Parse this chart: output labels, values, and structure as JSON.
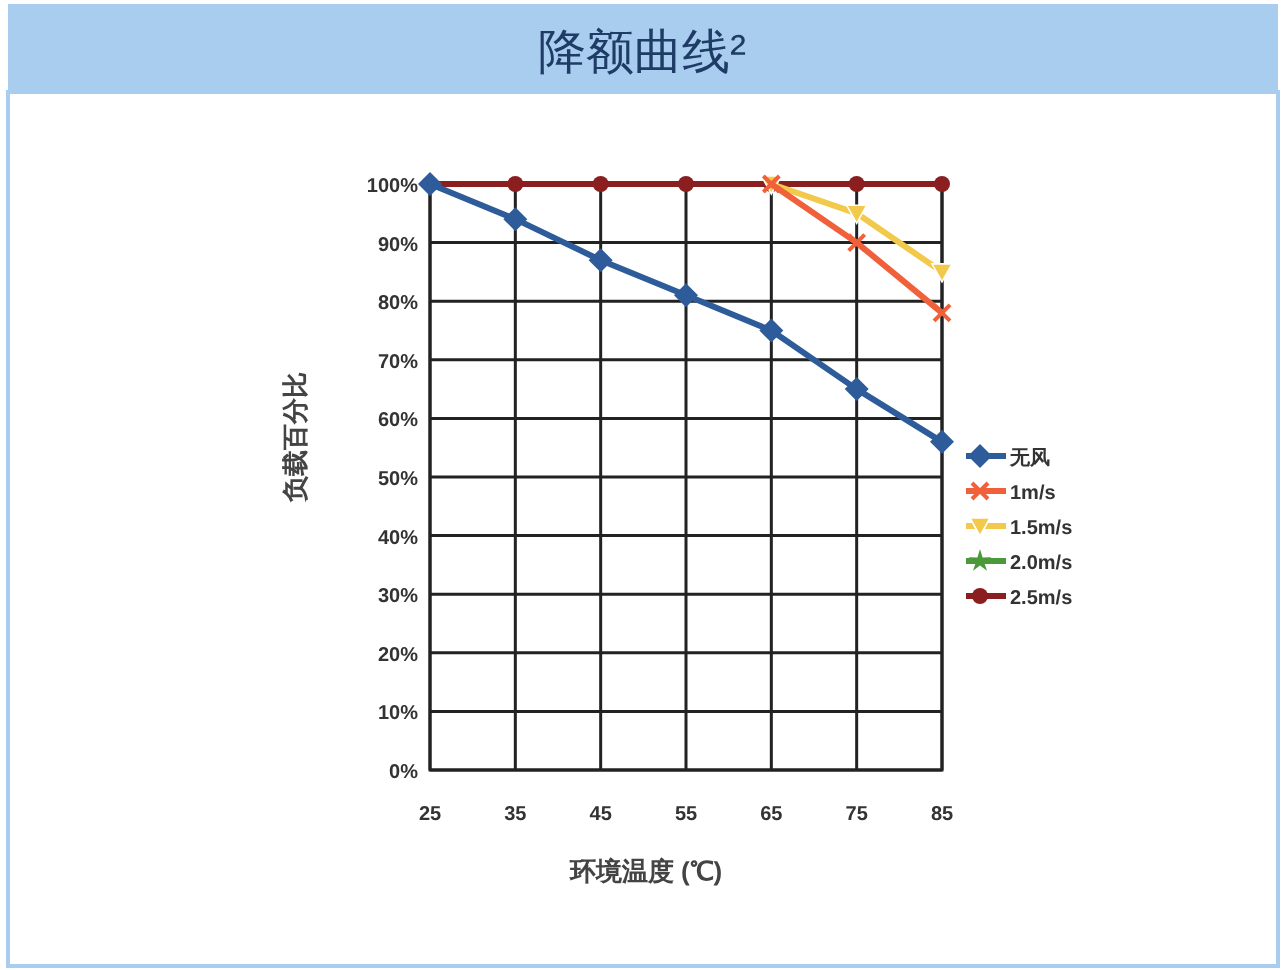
{
  "chart_data": {
    "type": "line",
    "title": "降额曲线²",
    "xlabel": "环境温度 (℃)",
    "ylabel": "负载百分比",
    "x": [
      25,
      35,
      45,
      55,
      65,
      75,
      85
    ],
    "xlim": [
      25,
      85
    ],
    "xticks": [
      25,
      35,
      45,
      55,
      65,
      75,
      85
    ],
    "ylim": [
      0,
      100
    ],
    "yticks": [
      {
        "value": 0,
        "label": "0%"
      },
      {
        "value": 10,
        "label": "10%"
      },
      {
        "value": 20,
        "label": "20%"
      },
      {
        "value": 30,
        "label": "30%"
      },
      {
        "value": 40,
        "label": "40%"
      },
      {
        "value": 50,
        "label": "50%"
      },
      {
        "value": 60,
        "label": "60%"
      },
      {
        "value": 70,
        "label": "70%"
      },
      {
        "value": 80,
        "label": "80%"
      },
      {
        "value": 90,
        "label": "90%"
      },
      {
        "value": 100,
        "label": "100%"
      }
    ],
    "grid": true,
    "legend": "right",
    "line_style": "solid",
    "series": [
      {
        "name": "无风",
        "color": "#2e5c9a",
        "marker": "diamond",
        "values": [
          100,
          94,
          87,
          81,
          75,
          65,
          56
        ]
      },
      {
        "name": "1m/s",
        "color": "#f0603a",
        "marker": "cross",
        "values": [
          null,
          null,
          null,
          null,
          100,
          90,
          78
        ]
      },
      {
        "name": "1.5m/s",
        "color": "#f2c94a",
        "marker": "triangle",
        "values": [
          null,
          null,
          null,
          null,
          100,
          95,
          85
        ]
      },
      {
        "name": "2.0m/s",
        "color": "#4a9a3a",
        "marker": "star",
        "values": [
          null,
          null,
          null,
          null,
          null,
          null,
          null
        ]
      },
      {
        "name": "2.5m/s",
        "color": "#8b1e1e",
        "marker": "circle",
        "values": [
          100,
          100,
          100,
          100,
          100,
          100,
          100
        ]
      }
    ]
  }
}
